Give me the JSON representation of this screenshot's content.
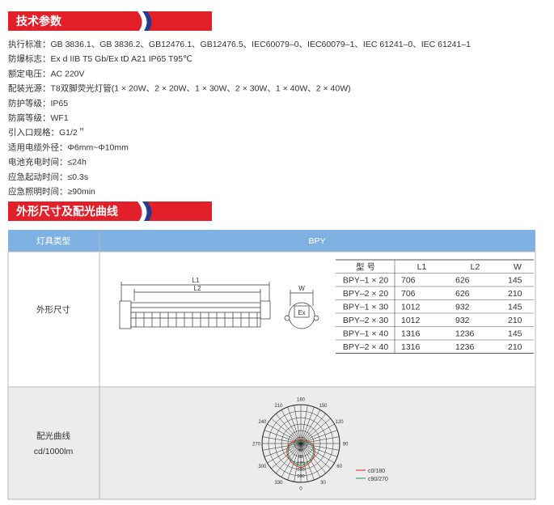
{
  "sections": [
    {
      "title": "技术参数"
    },
    {
      "title": "外形尺寸及配光曲线"
    }
  ],
  "specs": [
    "执行标准：GB 3836.1、GB 3836.2、GB12476.1、GB12476.5、IEC60079–0、IEC60079–1、IEC 61241–0、IEC 61241–1",
    "防爆标志：Ex d IIB T5 Gb/Ex tD A21 IP65 T95℃",
    "额定电压：AC 220V",
    "配装光源：T8双脚荧光灯管(1 × 20W、2 × 20W、1 × 30W、2 × 30W、1 × 40W、2 × 40W)",
    "防护等级：IP65",
    "防腐等级：WF1",
    "引入口规格：G1/2＂",
    "适用电缆外径：Φ6mm~Φ10mm",
    "电池充电时间：≤24h",
    "应急起动时间：≤0.3s",
    "应急照明时间：≥90min"
  ],
  "table": {
    "header": [
      "灯具类型",
      "BPY"
    ],
    "rows": [
      {
        "label": "外形尺寸"
      },
      {
        "label": "配光曲线",
        "sublabel": "cd/1000lm"
      }
    ]
  },
  "dimensions": {
    "header": [
      "型  号",
      "L1",
      "L2",
      "W"
    ],
    "rows": [
      [
        "BPY–1 × 20",
        706,
        626,
        145
      ],
      [
        "BPY–2 × 20",
        706,
        626,
        210
      ],
      [
        "BPY–1 × 30",
        1012,
        932,
        145
      ],
      [
        "BPY–2 × 30",
        1012,
        932,
        210
      ],
      [
        "BPY–1 × 40",
        1316,
        1236,
        145
      ],
      [
        "BPY–2 × 40",
        1316,
        1236,
        210
      ]
    ]
  },
  "drawing": {
    "length_outer": "L1",
    "length_inner": "L2",
    "width": "W",
    "mark": "Ex"
  },
  "polar": {
    "angles": [
      "0",
      "30",
      "60",
      "90",
      "120",
      "150",
      "180",
      "210",
      "240",
      "270",
      "300",
      "330"
    ],
    "rings": [
      "40",
      "80",
      "120",
      "160",
      "200"
    ],
    "legend": [
      "c0/180",
      "c90/270"
    ]
  }
}
